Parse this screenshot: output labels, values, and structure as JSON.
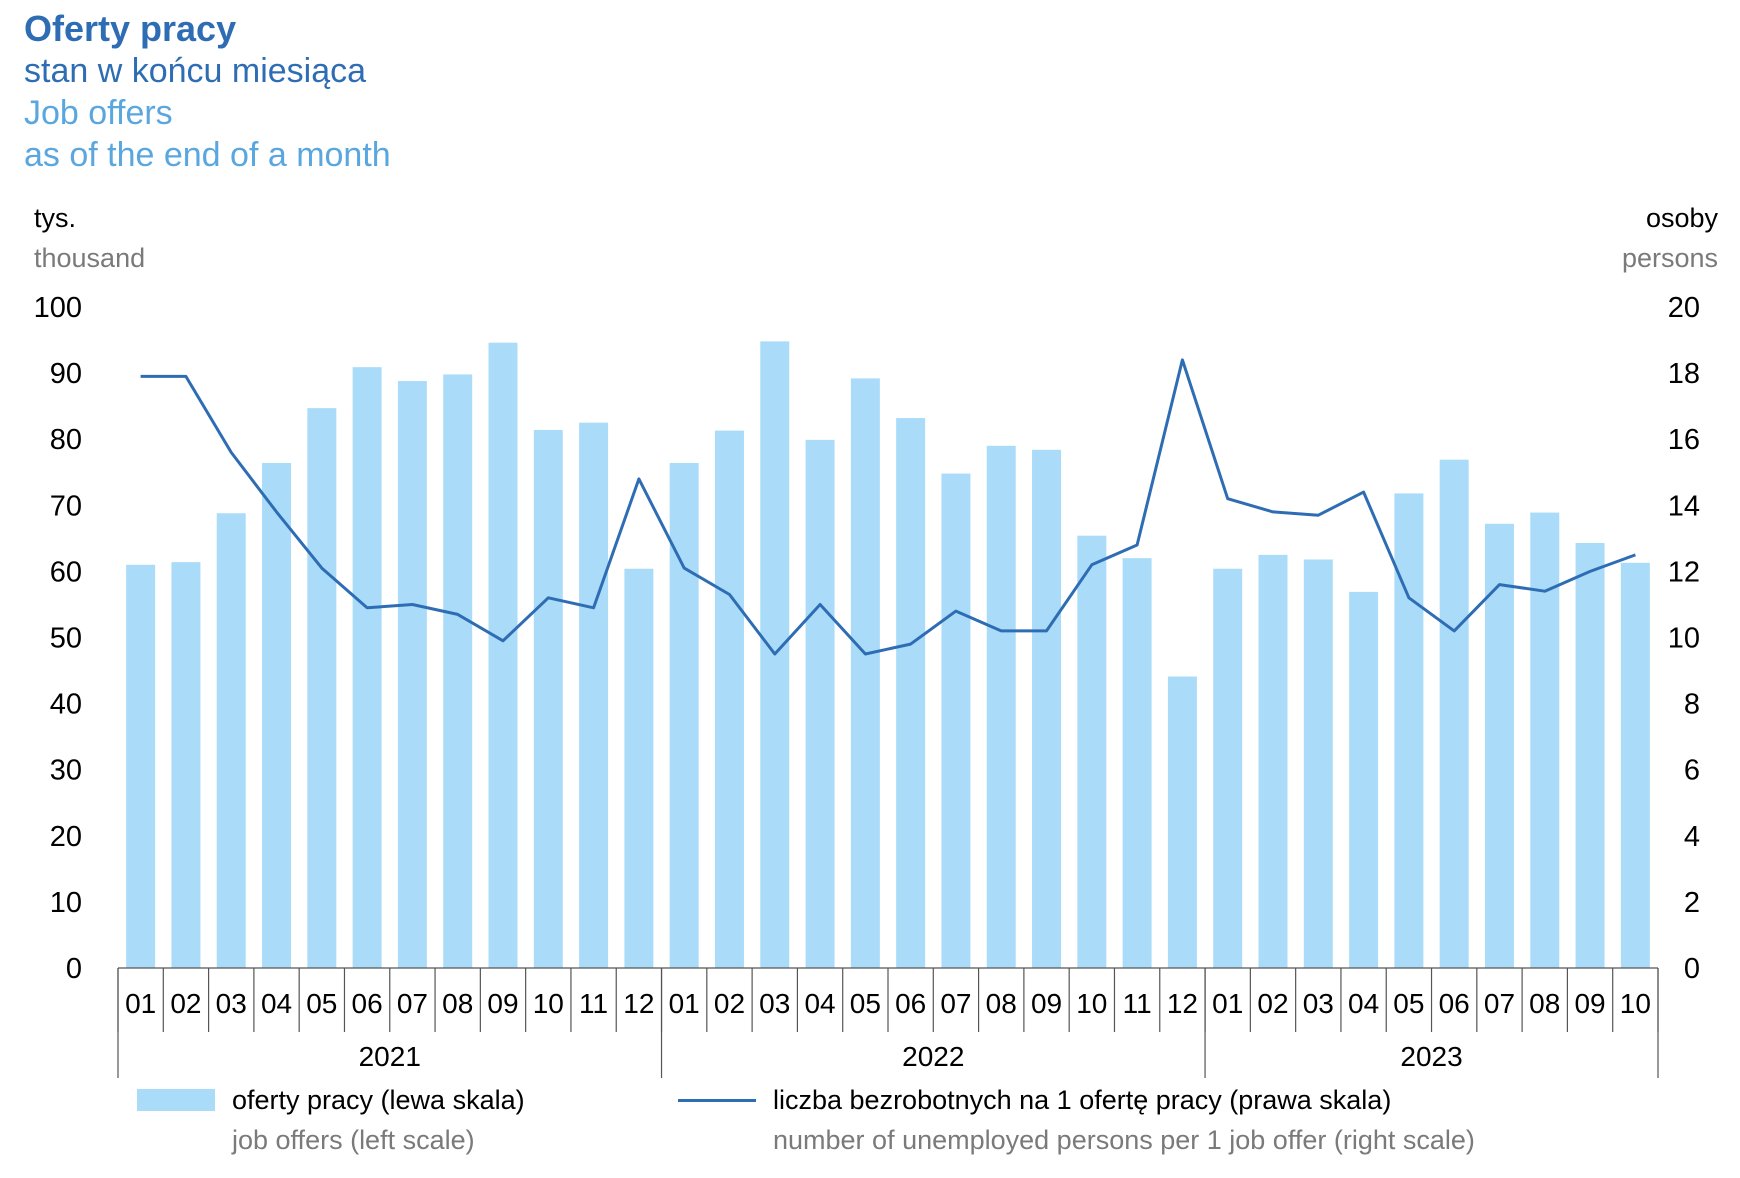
{
  "header": {
    "title_pl": "Oferty pracy",
    "subtitle_pl": "stan w końcu miesiąca",
    "title_en": "Job offers",
    "subtitle_en": "as of the end of a month"
  },
  "axes": {
    "left_unit_pl": "tys.",
    "left_unit_en": "thousand",
    "right_unit_pl": "osoby",
    "right_unit_en": "persons"
  },
  "legend": {
    "bars_pl": "oferty pracy (lewa skala)",
    "bars_en": "job offers (left scale)",
    "line_pl": "liczba bezrobotnych na 1 ofertę pracy (prawa skala)",
    "line_en": "number of unemployed persons per 1 job offer (right scale)"
  },
  "colors": {
    "bars": "#aadcf9",
    "line": "#2e6db4"
  },
  "chart_data": {
    "type": "bar",
    "categories": [
      "01",
      "02",
      "03",
      "04",
      "05",
      "06",
      "07",
      "08",
      "09",
      "10",
      "11",
      "12",
      "01",
      "02",
      "03",
      "04",
      "05",
      "06",
      "07",
      "08",
      "09",
      "10",
      "11",
      "12",
      "01",
      "02",
      "03",
      "04",
      "05",
      "06",
      "07",
      "08",
      "09",
      "10"
    ],
    "groups": [
      {
        "label": "2021",
        "count": 12
      },
      {
        "label": "2022",
        "count": 12
      },
      {
        "label": "2023",
        "count": 10
      }
    ],
    "ylim_left": [
      0,
      100
    ],
    "yticks_left": [
      0,
      10,
      20,
      30,
      40,
      50,
      60,
      70,
      80,
      90,
      100
    ],
    "ylim_right": [
      0,
      20
    ],
    "yticks_right": [
      0,
      2,
      4,
      6,
      8,
      10,
      12,
      14,
      16,
      18,
      20
    ],
    "series": [
      {
        "type": "bar",
        "axis": "left",
        "values": [
          61.0,
          61.4,
          68.8,
          76.4,
          84.7,
          90.9,
          88.8,
          89.8,
          94.6,
          81.4,
          82.5,
          60.4,
          76.4,
          81.3,
          94.8,
          79.9,
          89.2,
          83.2,
          74.8,
          79.0,
          78.4,
          65.4,
          62.0,
          44.1,
          60.4,
          62.5,
          61.8,
          56.9,
          71.8,
          76.9,
          67.2,
          68.9,
          64.3,
          61.3
        ]
      },
      {
        "type": "line",
        "axis": "right",
        "values": [
          17.9,
          17.9,
          15.6,
          13.8,
          12.1,
          10.9,
          11.0,
          10.7,
          9.9,
          11.2,
          10.9,
          14.8,
          12.1,
          11.3,
          9.5,
          11.0,
          9.5,
          9.8,
          10.8,
          10.2,
          10.2,
          12.2,
          12.8,
          18.4,
          14.2,
          13.8,
          13.7,
          14.4,
          11.2,
          10.2,
          11.6,
          11.4,
          12.0,
          12.5
        ]
      }
    ],
    "grid": "horizontal"
  }
}
